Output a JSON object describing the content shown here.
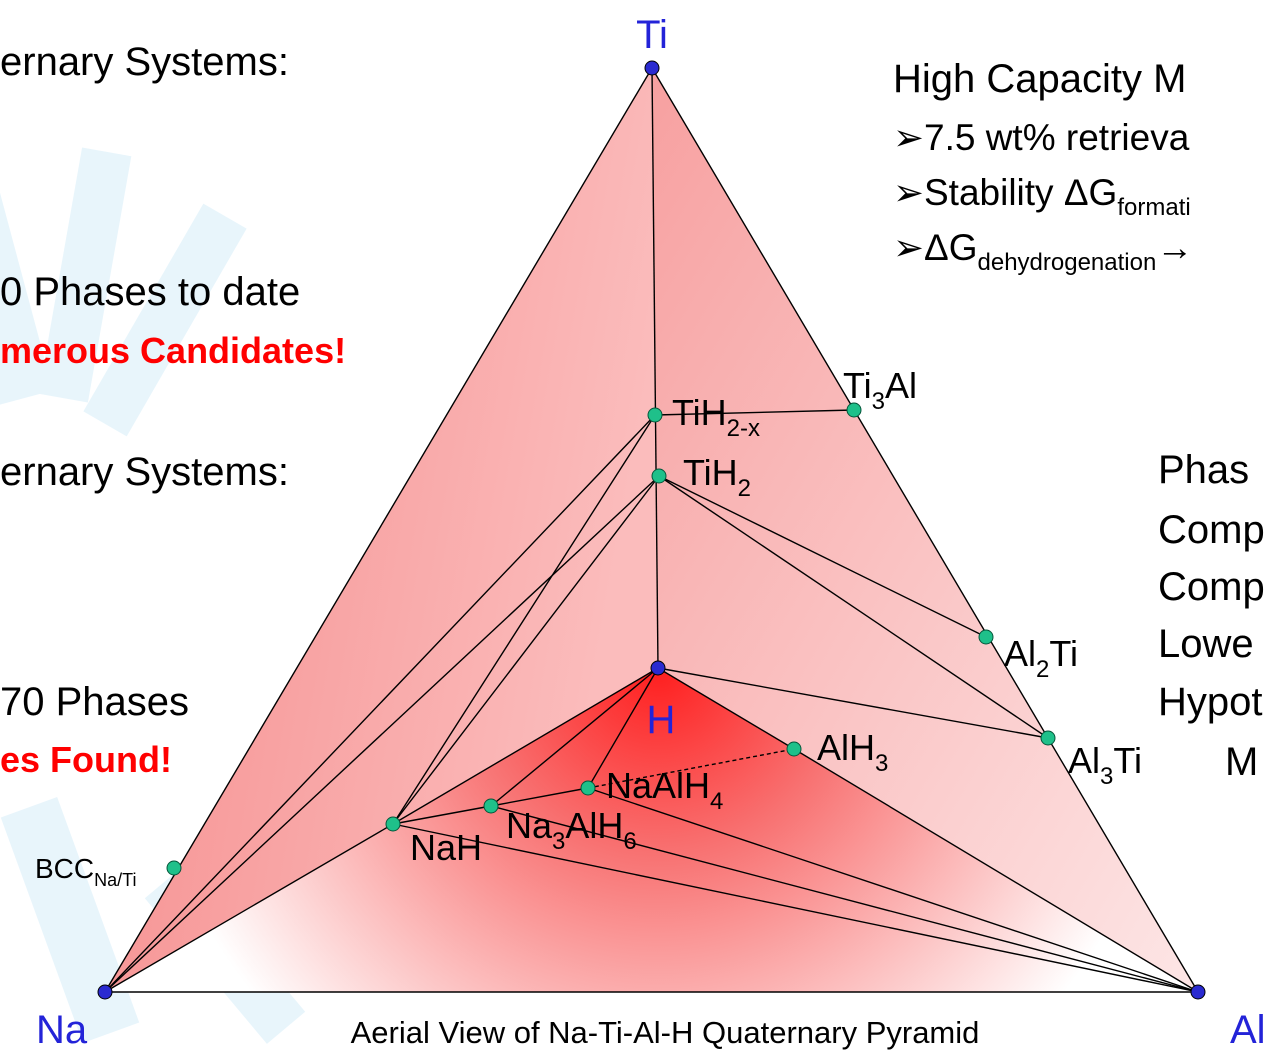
{
  "left": {
    "system1": "ernary Systems:",
    "phases1": "0 Phases to date",
    "candidates": "merous Candidates!",
    "system2": "ernary Systems:",
    "phases2": "70 Phases",
    "found": "es Found!"
  },
  "right": {
    "heading": "High Capacity M",
    "bullet1": "➢7.5 wt% retrieva",
    "bullet2": [
      {
        "t": "➢Stability ΔG"
      },
      {
        "s": "formati"
      }
    ],
    "bullet3": [
      {
        "t": "➢ΔG"
      },
      {
        "s": "dehydrogenation"
      },
      {
        "t": "→"
      }
    ],
    "list": [
      "Phas",
      "Comp",
      "Comp",
      "Lowe",
      "Hypot",
      "M"
    ]
  },
  "vertices": {
    "ti": "Ti",
    "na": "Na",
    "al": "Al",
    "h": "H"
  },
  "phases": [
    [
      {
        "t": "TiH"
      },
      {
        "s": "2-x"
      }
    ],
    [
      {
        "t": "TiH"
      },
      {
        "s": "2"
      }
    ],
    [
      {
        "t": "Ti"
      },
      {
        "s": "3"
      },
      {
        "t": "Al"
      }
    ],
    [
      {
        "t": "Al"
      },
      {
        "s": "2"
      },
      {
        "t": "Ti"
      }
    ],
    [
      {
        "t": "Al"
      },
      {
        "s": "3"
      },
      {
        "t": "Ti"
      }
    ],
    [
      {
        "t": "AlH"
      },
      {
        "s": "3"
      }
    ],
    [
      {
        "t": "NaAlH"
      },
      {
        "s": "4"
      }
    ],
    [
      {
        "t": "Na"
      },
      {
        "s": "3"
      },
      {
        "t": "AlH"
      },
      {
        "s": "6"
      }
    ],
    [
      {
        "t": "NaH"
      }
    ],
    [
      {
        "t": "BCC"
      },
      {
        "s": "Na/Ti"
      }
    ]
  ],
  "caption": "Aerial View of Na-Ti-Al-H Quaternary Pyramid"
}
